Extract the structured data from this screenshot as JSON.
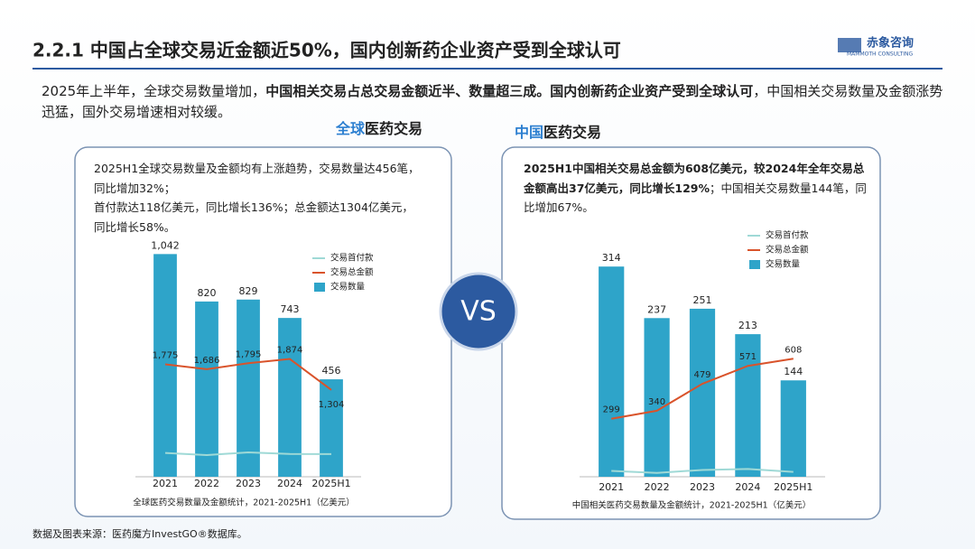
{
  "header": {
    "title": "2.2.1  中国占全球交易近金额近50%，国内创新药企业资产受到全球认可",
    "logo": "赤象咨询",
    "logo_sub": "MAMMOTH CONSULTING"
  },
  "intro": [
    "2025年上半年，全球交易数量增加，",
    "中国相关交易占总交易金额近半、数量超三成。国内创新药企业资产受到全球认可",
    "，中国相关交易数量及金额涨势迅猛，国外交易增速相对较缓。"
  ],
  "vs": "VS",
  "footer": "数据及图表来源：医药魔方InvestGO®数据库。",
  "chart_data": [
    {
      "type": "combo",
      "heading": [
        "全球",
        "医药交易"
      ],
      "note": [
        "2025H1全球交易数量及金额均有上涨趋势，交易数量达456笔，",
        "同比增加32%；",
        "首付款达118亿美元，同比增长136%；总金额达1304亿美元，",
        "同比增长58%。"
      ],
      "caption": "全球医药交易数量及金额统计，2021-2025H1（亿美元）",
      "categories": [
        "2021",
        "2022",
        "2023",
        "2024",
        "2025H1"
      ],
      "ylim": [
        0,
        1090
      ],
      "y2lim": [
        -300,
        4000
      ],
      "series": [
        {
          "name": "交易首付款",
          "kind": "line",
          "axis": "y2",
          "color": "#9fd9d6",
          "values": [
            140,
            100,
            150,
            120,
            118
          ]
        },
        {
          "name": "交易总金额",
          "kind": "line",
          "axis": "y2",
          "color": "#d9532b",
          "values": [
            1775,
            1686,
            1795,
            1874,
            1304
          ],
          "value_labels": [
            "1,775",
            "1,686",
            "1,795",
            "1,874",
            "1,304"
          ]
        },
        {
          "name": "交易数量",
          "kind": "bar",
          "axis": "y",
          "color": "#2ea4c9",
          "values": [
            1042,
            820,
            829,
            743,
            456
          ],
          "value_labels": [
            "1,042",
            "820",
            "829",
            "743",
            "456"
          ]
        }
      ]
    },
    {
      "type": "combo",
      "heading": [
        "中国",
        "医药交易"
      ],
      "note": [
        "2025H1中国相关交易总金额为608亿美元，较2024年全年交易总金额高出37亿美元，同比增长129%",
        "；中国相关交易数量144笔，同比增加67%。"
      ],
      "caption": "中国相关医药交易数量及金额统计，2021-2025H1（亿美元）",
      "categories": [
        "2021",
        "2022",
        "2023",
        "2024",
        "2025H1"
      ],
      "ylim": [
        0,
        348
      ],
      "y2lim": [
        0,
        1200
      ],
      "series": [
        {
          "name": "交易首付款",
          "kind": "line",
          "axis": "y2",
          "color": "#9fd9d6",
          "values": [
            30,
            20,
            35,
            40,
            25
          ]
        },
        {
          "name": "交易总金额",
          "kind": "line",
          "axis": "y2",
          "color": "#d9532b",
          "values": [
            299,
            340,
            479,
            571,
            608
          ]
        },
        {
          "name": "交易数量",
          "kind": "bar",
          "axis": "y",
          "color": "#2ea4c9",
          "values": [
            314,
            237,
            251,
            213,
            144
          ]
        }
      ]
    }
  ]
}
